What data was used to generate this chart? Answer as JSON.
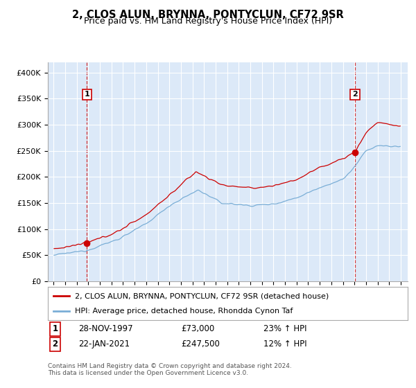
{
  "title": "2, CLOS ALUN, BRYNNA, PONTYCLUN, CF72 9SR",
  "subtitle": "Price paid vs. HM Land Registry's House Price Index (HPI)",
  "red_label": "2, CLOS ALUN, BRYNNA, PONTYCLUN, CF72 9SR (detached house)",
  "blue_label": "HPI: Average price, detached house, Rhondda Cynon Taf",
  "annotation1_date": "28-NOV-1997",
  "annotation1_price": "£73,000",
  "annotation1_hpi": "23% ↑ HPI",
  "annotation2_date": "22-JAN-2021",
  "annotation2_price": "£247,500",
  "annotation2_hpi": "12% ↑ HPI",
  "footer1": "Contains HM Land Registry data © Crown copyright and database right 2024.",
  "footer2": "This data is licensed under the Open Government Licence v3.0.",
  "ylim": [
    0,
    420000
  ],
  "yticks": [
    0,
    50000,
    100000,
    150000,
    200000,
    250000,
    300000,
    350000,
    400000
  ],
  "plot_background": "#dce9f8",
  "red_color": "#cc0000",
  "blue_color": "#7aaed6",
  "grid_color": "#ffffff"
}
